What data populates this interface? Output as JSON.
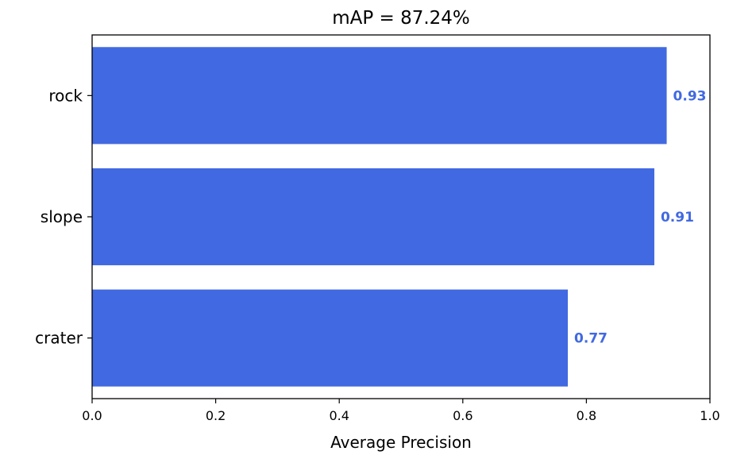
{
  "chart_data": {
    "type": "bar",
    "orientation": "horizontal",
    "title": "mAP = 87.24%",
    "xlabel": "Average Precision",
    "ylabel": "",
    "categories": [
      "rock",
      "slope",
      "crater"
    ],
    "values": [
      0.93,
      0.91,
      0.77
    ],
    "value_labels": [
      "0.93",
      "0.91",
      "0.77"
    ],
    "xlim": [
      0.0,
      1.0
    ],
    "xticks": [
      0.0,
      0.2,
      0.4,
      0.6,
      0.8,
      1.0
    ],
    "xtick_labels": [
      "0.0",
      "0.2",
      "0.4",
      "0.6",
      "0.8",
      "1.0"
    ],
    "grid": false,
    "colors": {
      "bar": "#4169e1",
      "label": "#4169e1"
    }
  }
}
